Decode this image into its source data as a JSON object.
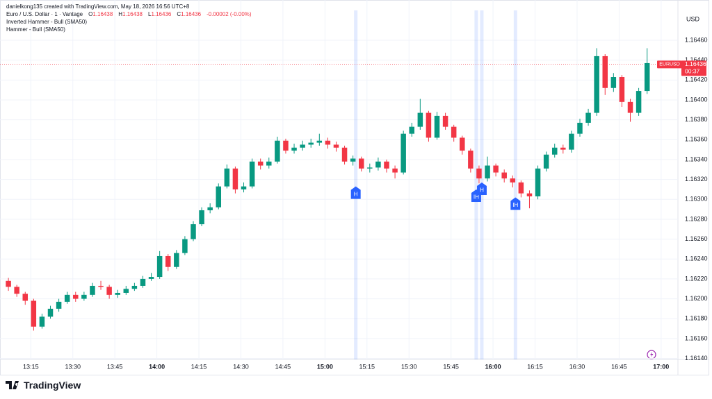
{
  "chart_data": {
    "type": "candlestick",
    "author_line": "danielkong135 created with TradingView.com, May 18, 2026 16:56 UTC+8",
    "symbol_line": "Euro / U.S. Dollar · 1 · Vantage",
    "legend_ohlc": [
      {
        "label": "O",
        "value": 1.16438
      },
      {
        "label": "H",
        "value": 1.16438
      },
      {
        "label": "L",
        "value": 1.16436
      },
      {
        "label": "C",
        "value": 1.16436
      }
    ],
    "change": "-0.00002 (-0.00%)",
    "indicators": [
      "Inverted Hammer - Bull (SMA50)",
      "Hammer - Bull (SMA50)"
    ],
    "currency": "USD",
    "brand": "TradingView",
    "up_color": "#089981",
    "down_color": "#f23645",
    "grid": true,
    "x": [
      "13:07",
      "13:10",
      "13:13",
      "13:16",
      "13:19",
      "13:22",
      "13:25",
      "13:28",
      "13:31",
      "13:34",
      "13:37",
      "13:40",
      "13:43",
      "13:46",
      "13:49",
      "13:52",
      "13:55",
      "13:58",
      "14:01",
      "14:04",
      "14:07",
      "14:10",
      "14:13",
      "14:16",
      "14:19",
      "14:22",
      "14:25",
      "14:28",
      "14:31",
      "14:34",
      "14:37",
      "14:40",
      "14:43",
      "14:46",
      "14:49",
      "14:52",
      "14:55",
      "14:58",
      "15:01",
      "15:04",
      "15:07",
      "15:10",
      "15:13",
      "15:16",
      "15:19",
      "15:22",
      "15:25",
      "15:28",
      "15:31",
      "15:34",
      "15:37",
      "15:40",
      "15:43",
      "15:46",
      "15:49",
      "15:52",
      "15:55",
      "15:58",
      "16:01",
      "16:04",
      "16:07",
      "16:10",
      "16:13",
      "16:16",
      "16:19",
      "16:22",
      "16:25",
      "16:28",
      "16:31",
      "16:34",
      "16:37",
      "16:40",
      "16:43",
      "16:46",
      "16:49",
      "16:52",
      "16:55"
    ],
    "open": [
      1.16218,
      1.16212,
      1.16205,
      1.16198,
      1.16172,
      1.16182,
      1.1619,
      1.16197,
      1.16204,
      1.162,
      1.16204,
      1.16213,
      1.16212,
      1.16204,
      1.16206,
      1.1621,
      1.16213,
      1.1622,
      1.16222,
      1.16243,
      1.16232,
      1.16246,
      1.1626,
      1.16275,
      1.16289,
      1.16292,
      1.16313,
      1.16331,
      1.1631,
      1.16313,
      1.16338,
      1.16334,
      1.16338,
      1.16359,
      1.16349,
      1.16352,
      1.16355,
      1.16357,
      1.16359,
      1.16355,
      1.16352,
      1.16338,
      1.16341,
      1.16331,
      1.16332,
      1.16338,
      1.16331,
      1.16327,
      1.16366,
      1.16373,
      1.16387,
      1.16362,
      1.16384,
      1.16373,
      1.16362,
      1.16349,
      1.16331,
      1.16321,
      1.16334,
      1.16327,
      1.16321,
      1.16317,
      1.16306,
      1.16303,
      1.16331,
      1.16345,
      1.16352,
      1.1635,
      1.16366,
      1.16377,
      1.16387,
      1.16444,
      1.16412,
      1.16423,
      1.16398,
      1.16387,
      1.16409
    ],
    "high": [
      1.16221,
      1.16214,
      1.16207,
      1.162,
      1.16185,
      1.16193,
      1.162,
      1.16207,
      1.16207,
      1.16207,
      1.16216,
      1.16218,
      1.16214,
      1.16209,
      1.16213,
      1.16216,
      1.16223,
      1.16226,
      1.16248,
      1.16245,
      1.16249,
      1.16263,
      1.16278,
      1.16292,
      1.16296,
      1.16316,
      1.16335,
      1.16333,
      1.16317,
      1.16341,
      1.16341,
      1.16342,
      1.16363,
      1.16361,
      1.16356,
      1.16359,
      1.16361,
      1.16366,
      1.16362,
      1.16358,
      1.16354,
      1.16344,
      1.16343,
      1.16336,
      1.16342,
      1.1634,
      1.16334,
      1.16369,
      1.16377,
      1.16401,
      1.16389,
      1.16388,
      1.16387,
      1.16375,
      1.16364,
      1.16351,
      1.16334,
      1.16343,
      1.16336,
      1.1633,
      1.16324,
      1.16319,
      1.16309,
      1.16334,
      1.16348,
      1.16356,
      1.16355,
      1.16369,
      1.16381,
      1.16391,
      1.16452,
      1.16446,
      1.16427,
      1.16425,
      1.16401,
      1.16412,
      1.16452
    ],
    "low": [
      1.16208,
      1.16202,
      1.16194,
      1.16168,
      1.1617,
      1.1618,
      1.16187,
      1.16195,
      1.16197,
      1.16198,
      1.16202,
      1.16209,
      1.162,
      1.16201,
      1.16204,
      1.16208,
      1.16211,
      1.16218,
      1.1622,
      1.16228,
      1.1623,
      1.16244,
      1.16258,
      1.16273,
      1.16286,
      1.1629,
      1.16311,
      1.16306,
      1.16307,
      1.16311,
      1.1633,
      1.16331,
      1.16336,
      1.16346,
      1.16346,
      1.16349,
      1.16352,
      1.16354,
      1.16351,
      1.16348,
      1.16335,
      1.16334,
      1.16328,
      1.16327,
      1.16329,
      1.16327,
      1.16321,
      1.16325,
      1.16363,
      1.1637,
      1.16358,
      1.1636,
      1.1637,
      1.16358,
      1.16345,
      1.16327,
      1.16316,
      1.16318,
      1.16323,
      1.16317,
      1.16312,
      1.16302,
      1.16291,
      1.163,
      1.16328,
      1.16342,
      1.16346,
      1.16347,
      1.16363,
      1.16374,
      1.16384,
      1.16405,
      1.16408,
      1.16393,
      1.16378,
      1.16384,
      1.16406
    ],
    "close": [
      1.16212,
      1.16205,
      1.16198,
      1.16172,
      1.16182,
      1.1619,
      1.16197,
      1.16204,
      1.162,
      1.16204,
      1.16213,
      1.16212,
      1.16204,
      1.16206,
      1.1621,
      1.16213,
      1.1622,
      1.16222,
      1.16243,
      1.16232,
      1.16246,
      1.1626,
      1.16275,
      1.16289,
      1.16292,
      1.16313,
      1.16331,
      1.1631,
      1.16313,
      1.16338,
      1.16334,
      1.16338,
      1.16359,
      1.16349,
      1.16352,
      1.16355,
      1.16357,
      1.16359,
      1.16355,
      1.16352,
      1.16338,
      1.16341,
      1.16331,
      1.16332,
      1.16338,
      1.16331,
      1.16327,
      1.16366,
      1.16373,
      1.16387,
      1.16362,
      1.16384,
      1.16373,
      1.16362,
      1.16349,
      1.16331,
      1.16321,
      1.16334,
      1.16327,
      1.16321,
      1.16317,
      1.16306,
      1.16303,
      1.16331,
      1.16345,
      1.16352,
      1.1635,
      1.16366,
      1.16377,
      1.16387,
      1.16444,
      1.16412,
      1.16423,
      1.16398,
      1.16387,
      1.16409,
      1.16437
    ],
    "xlim": [
      "13:04",
      "17:06"
    ],
    "xticks": [
      "13:15",
      "13:30",
      "13:45",
      "14:00",
      "14:15",
      "14:30",
      "14:45",
      "15:00",
      "15:15",
      "15:30",
      "15:45",
      "16:00",
      "16:15",
      "16:30",
      "16:45",
      "17:00"
    ],
    "ylim": [
      1.16139,
      1.1649
    ],
    "yticks": [
      {
        "value": 1.1614,
        "label": "1.16140"
      },
      {
        "value": 1.1616,
        "label": "1.16160"
      },
      {
        "value": 1.1618,
        "label": "1.16180"
      },
      {
        "value": 1.162,
        "label": "1.16200"
      },
      {
        "value": 1.1622,
        "label": "1.16220"
      },
      {
        "value": 1.1624,
        "label": "1.16240"
      },
      {
        "value": 1.1626,
        "label": "1.16260"
      },
      {
        "value": 1.1628,
        "label": "1.16280"
      },
      {
        "value": 1.163,
        "label": "1.16300"
      },
      {
        "value": 1.1632,
        "label": "1.16320"
      },
      {
        "value": 1.1634,
        "label": "1.16340"
      },
      {
        "value": 1.1636,
        "label": "1.16360"
      },
      {
        "value": 1.1638,
        "label": "1.16380"
      },
      {
        "value": 1.164,
        "label": "1.16400"
      },
      {
        "value": 1.1642,
        "label": "1.16420"
      },
      {
        "value": 1.1644,
        "label": "1.16440"
      },
      {
        "value": 1.1646,
        "label": "1.16460"
      }
    ],
    "annotations": [
      {
        "label": "H",
        "x": "15:11",
        "y": 1.16306
      },
      {
        "label": "IH",
        "x": "15:54",
        "y": 1.16303
      },
      {
        "label": "H",
        "x": "15:56",
        "y": 1.1631
      },
      {
        "label": "IH",
        "x": "16:08",
        "y": 1.16295
      }
    ],
    "last_price": 1.16436,
    "last_symbol": "EURUSD",
    "countdown": "00:37"
  }
}
